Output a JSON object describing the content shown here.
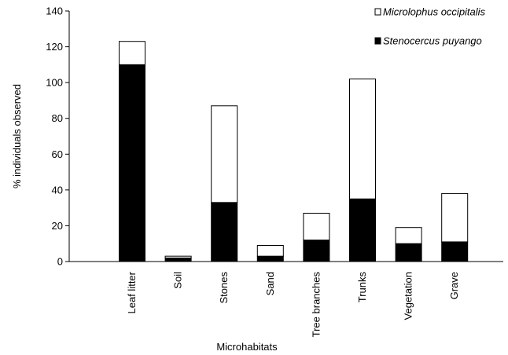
{
  "chart_data": {
    "type": "bar",
    "stacked": true,
    "xlabel": "Microhabitats",
    "ylabel": "% individuals observed",
    "ylim": [
      0,
      140
    ],
    "yticks": [
      0,
      20,
      40,
      60,
      80,
      100,
      120,
      140
    ],
    "grid": false,
    "legend_position": "top-right",
    "categories": [
      "Leaf litter",
      "Soil",
      "Stones",
      "Sand",
      "Tree branches",
      "Trunks",
      "Vegetation",
      "Grave"
    ],
    "series": [
      {
        "name": "Stenocercus puyango",
        "color": "#000000",
        "values": [
          110,
          2,
          33,
          3,
          12,
          35,
          10,
          11
        ]
      },
      {
        "name": "Microlophus occipitalis",
        "color": "#ffffff",
        "values": [
          13,
          1,
          54,
          6,
          15,
          67,
          9,
          27
        ]
      }
    ],
    "legend_order": [
      1,
      0
    ]
  }
}
